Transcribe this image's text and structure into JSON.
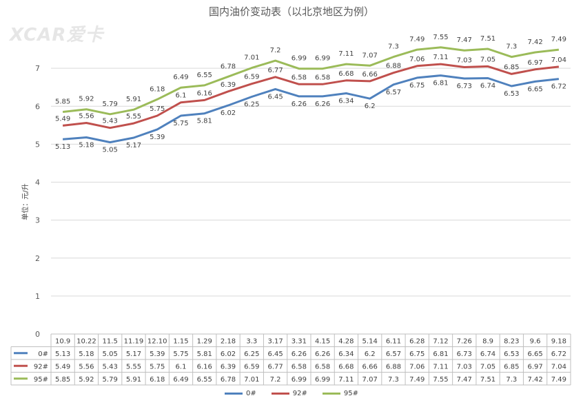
{
  "chart_data": {
    "type": "line",
    "title": "国内油价变动表（以北京地区为例）",
    "xlabel": "",
    "ylabel": "单位：元/升",
    "ylim": [
      0,
      8
    ],
    "yticks": [
      0,
      1,
      2,
      3,
      4,
      5,
      6,
      7
    ],
    "grid": true,
    "legend_position": "bottom",
    "categories": [
      "10.9",
      "10.22",
      "11.5",
      "11.19",
      "12.10",
      "1.15",
      "1.29",
      "2.18",
      "3.3",
      "3.17",
      "3.31",
      "4.15",
      "4.28",
      "5.14",
      "6.11",
      "6.28",
      "7.12",
      "7.26",
      "8.9",
      "8.23",
      "9.6",
      "9.18"
    ],
    "series": [
      {
        "name": "0#",
        "color": "#4f81bd",
        "values": [
          5.13,
          5.18,
          5.05,
          5.17,
          5.39,
          5.75,
          5.81,
          6.02,
          6.25,
          6.45,
          6.26,
          6.26,
          6.34,
          6.2,
          6.57,
          6.75,
          6.81,
          6.73,
          6.74,
          6.53,
          6.65,
          6.72
        ]
      },
      {
        "name": "92#",
        "color": "#c0504d",
        "values": [
          5.49,
          5.56,
          5.43,
          5.55,
          5.75,
          6.1,
          6.16,
          6.39,
          6.59,
          6.77,
          6.58,
          6.58,
          6.68,
          6.66,
          6.88,
          7.06,
          7.11,
          7.03,
          7.05,
          6.85,
          6.97,
          7.04
        ]
      },
      {
        "name": "95#",
        "color": "#9bbb59",
        "values": [
          5.85,
          5.92,
          5.79,
          5.91,
          6.18,
          6.49,
          6.55,
          6.78,
          7.01,
          7.2,
          6.99,
          6.99,
          7.11,
          7.07,
          7.3,
          7.49,
          7.55,
          7.47,
          7.51,
          7.3,
          7.42,
          7.49
        ]
      }
    ],
    "data_table": true
  },
  "watermark": "XCAR爱卡"
}
